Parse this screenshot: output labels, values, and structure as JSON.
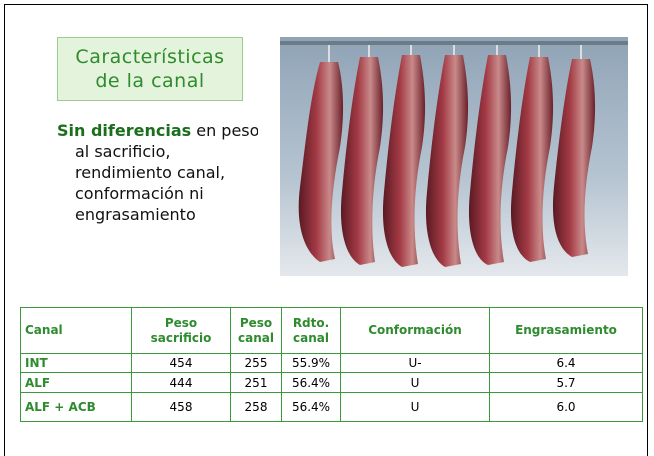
{
  "slide": {
    "title": [
      "Características",
      "de la canal"
    ],
    "body": {
      "bold": "Sin diferencias",
      "lines": [
        "en peso",
        "al sacrificio,",
        "rendimiento canal,",
        "conformación ni",
        "engrasamiento"
      ]
    },
    "table": {
      "header": [
        "Canal",
        "Peso sacrificio",
        "Peso canal",
        "Rdto. canal",
        "Conformación",
        "Engrasamiento"
      ],
      "rows": [
        [
          "INT",
          "454",
          "255",
          "55.9%",
          "U-",
          "6.4"
        ],
        [
          "ALF",
          "444",
          "251",
          "56.4%",
          "U",
          "5.7"
        ],
        [
          "ALF + ACB",
          "458",
          "258",
          "56.4%",
          "U",
          "6.0"
        ]
      ]
    }
  }
}
